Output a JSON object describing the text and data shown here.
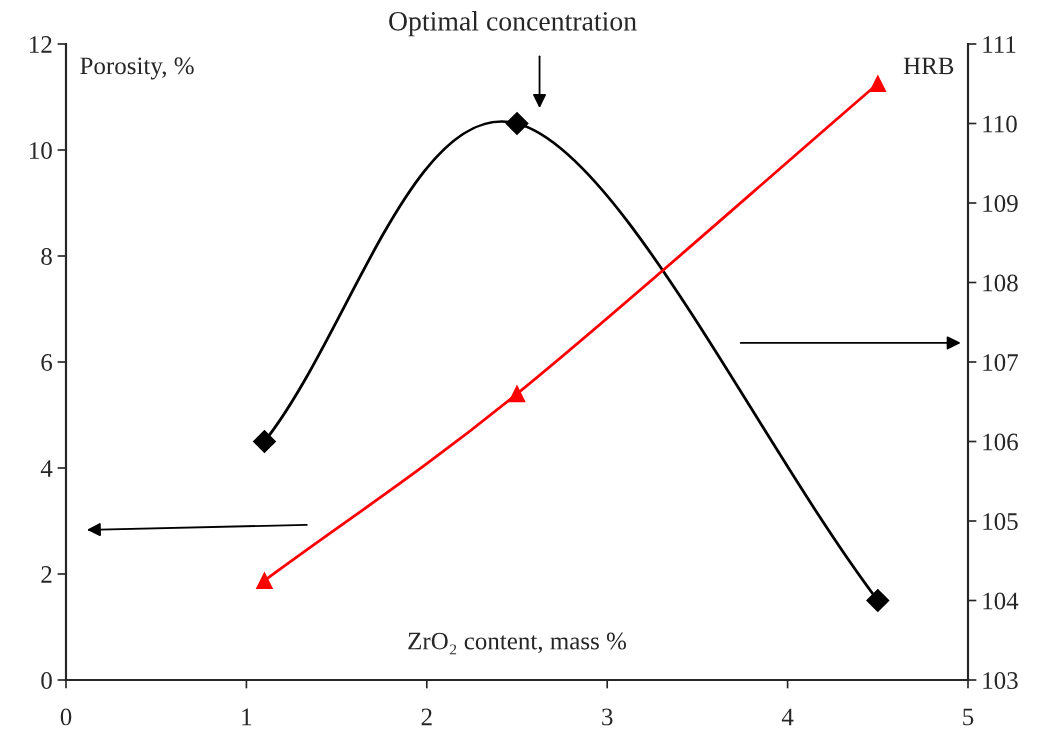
{
  "chart_data": {
    "type": "line",
    "title": "Optimal concentration",
    "xlabel": "ZrO₂ content, mass %",
    "ylabel": "Porosity, %",
    "y2label": "HRB",
    "x": [
      1.1,
      2.5,
      4.5
    ],
    "series": [
      {
        "color": "#000000",
        "values": [
          4.5,
          10.5,
          1.5
        ],
        "marker": "diamond"
      },
      {
        "color": "#ff0000",
        "values": [
          104.25,
          106.6,
          110.5
        ],
        "marker": "triangle",
        "axis": "y2"
      }
    ],
    "xlim": [
      0,
      5
    ],
    "xticks": [
      0,
      1,
      2,
      3,
      4,
      5
    ],
    "ylim": [
      0,
      12
    ],
    "yticks": [
      0,
      2,
      4,
      6,
      8,
      10,
      12
    ],
    "y2lim": [
      103,
      111
    ],
    "y2ticks": [
      103,
      104,
      105,
      106,
      107,
      108,
      109,
      110,
      111
    ],
    "grid": false,
    "legend": false
  }
}
